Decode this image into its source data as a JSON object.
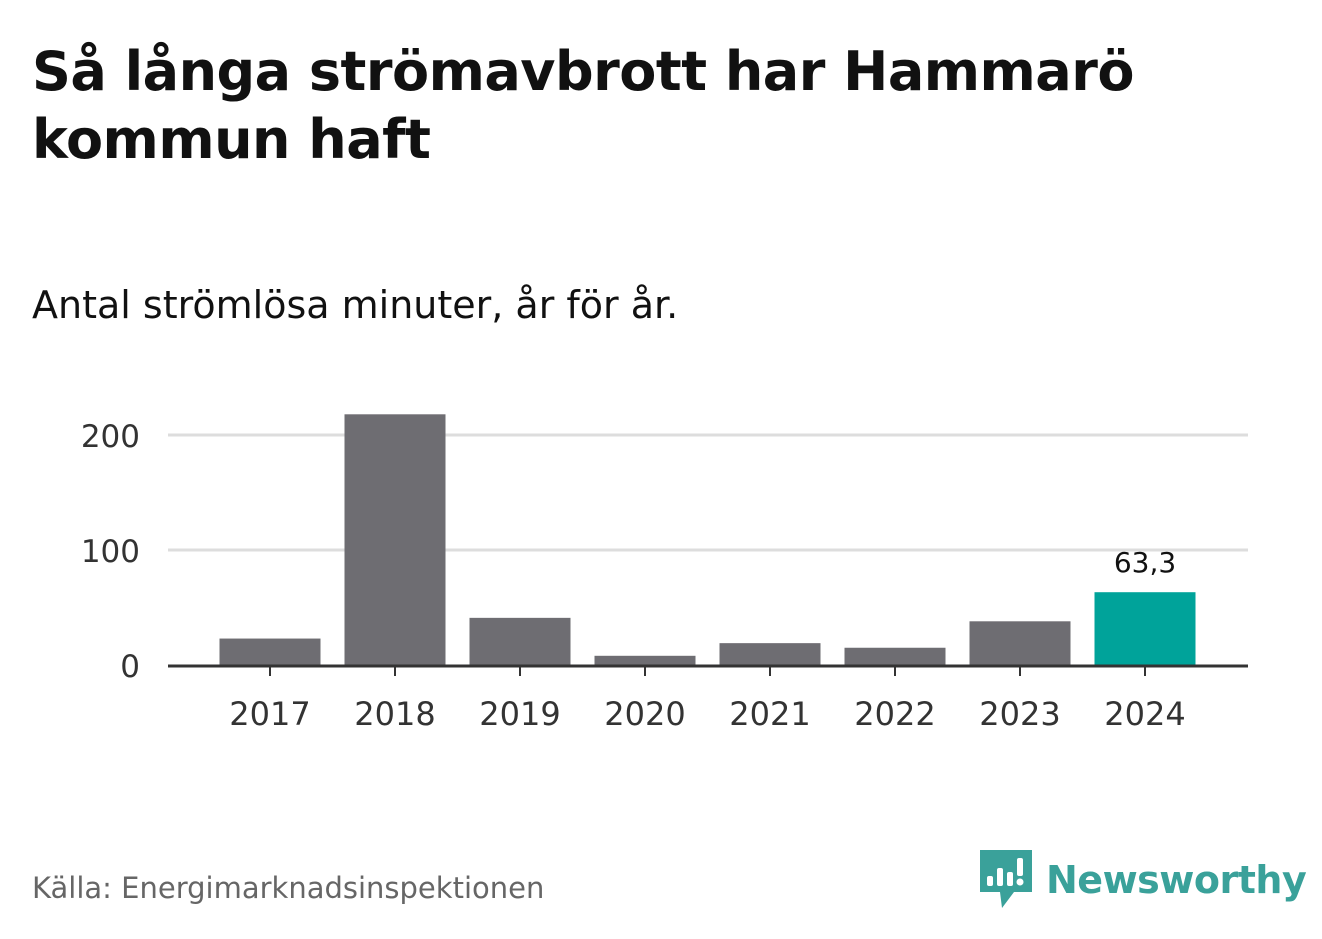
{
  "title": "Så långa strömavbrott har Hammarö kommun haft",
  "subtitle": "Antal strömlösa minuter, år för år.",
  "source": "Källa: Energimarknadsinspektionen",
  "brand": {
    "name": "Newsworthy",
    "icon": "newsworthy-logo-icon",
    "color": "#3aa19a"
  },
  "colors": {
    "bar": "#6e6d72",
    "highlight": "#00a39a",
    "grid": "#dddddd",
    "axis": "#333333"
  },
  "chart_data": {
    "type": "bar",
    "categories": [
      "2017",
      "2018",
      "2019",
      "2020",
      "2021",
      "2022",
      "2023",
      "2024"
    ],
    "values": [
      23,
      218,
      41,
      8,
      19,
      15,
      38,
      63.3
    ],
    "highlight_index": 7,
    "data_labels": [
      {
        "index": 7,
        "text": "63,3"
      }
    ],
    "y_ticks": [
      0,
      100,
      200
    ],
    "y_tick_labels": [
      "0",
      "100",
      "200"
    ],
    "ylim": [
      0,
      225
    ],
    "xlabel": "",
    "ylabel": "",
    "grid": true,
    "legend": "none"
  }
}
